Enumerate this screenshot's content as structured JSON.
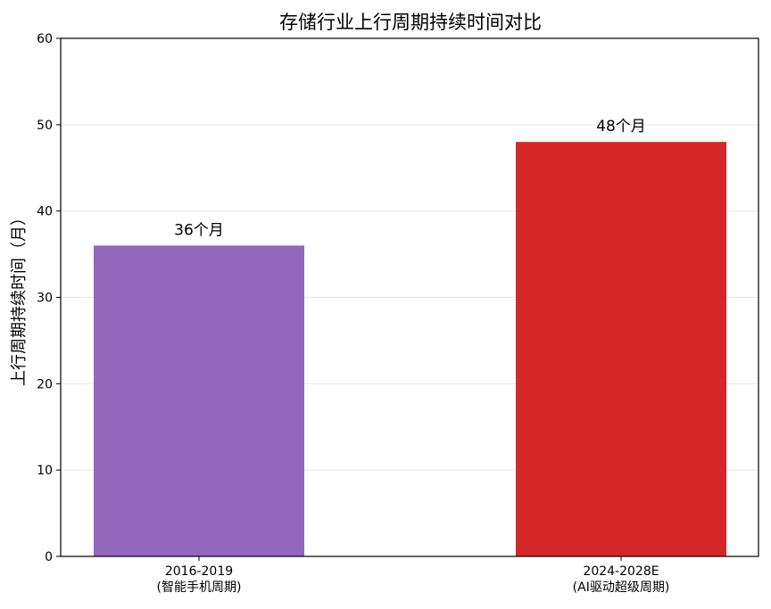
{
  "chart_data": {
    "type": "bar",
    "title": "存储行业上行周期持续时间对比",
    "xlabel": "",
    "ylabel": "上行周期持续时间（月）",
    "categories": [
      [
        "2016-2019",
        "(智能手机周期)"
      ],
      [
        "2024-2028E",
        "(AI驱动超级周期)"
      ]
    ],
    "values": [
      36,
      48
    ],
    "data_labels": [
      "36个月",
      "48个月"
    ],
    "colors": [
      "#9467bd",
      "#d62728"
    ],
    "ylim": [
      0,
      60
    ],
    "yticks": [
      0,
      10,
      20,
      30,
      40,
      50,
      60
    ],
    "grid": "y"
  }
}
